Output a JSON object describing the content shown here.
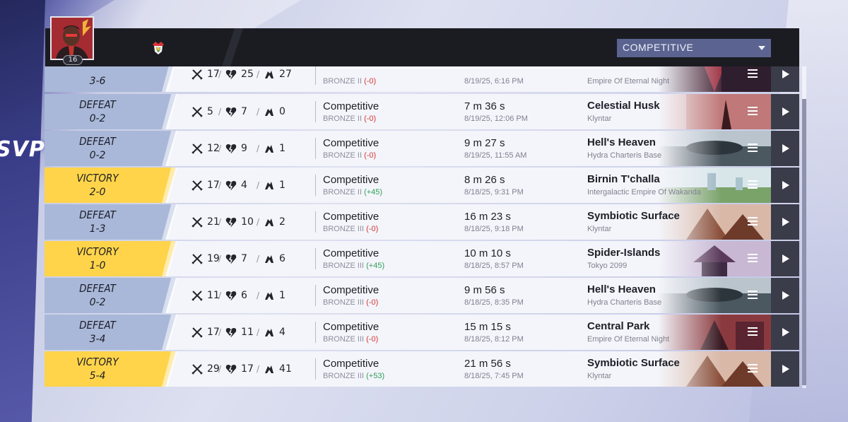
{
  "player": {
    "level": "16"
  },
  "header": {
    "mode_select": "COMPETITIVE"
  },
  "side_text": "SVP",
  "colors": {
    "victory": "#ffd44a",
    "defeat": "#a9b8d9",
    "delta_negative": "#d23838",
    "delta_positive": "#2fa05a"
  },
  "matches": [
    {
      "result": "",
      "score": "3-6",
      "kills": "17",
      "deaths": "25",
      "assists": "27",
      "mode": "Competitive",
      "rank": "BRONZE II",
      "delta": "(-0)",
      "duration": "",
      "datetime": "8/19/25, 6:16 PM",
      "map": "",
      "region": "Empire Of Eternal Night"
    },
    {
      "result": "DEFEAT",
      "score": "0-2",
      "kills": "5",
      "deaths": "7",
      "assists": "0",
      "mode": "Competitive",
      "rank": "BRONZE II",
      "delta": "(-0)",
      "duration": "7 m 36 s",
      "datetime": "8/19/25, 12:06 PM",
      "map": "Celestial Husk",
      "region": "Klyntar"
    },
    {
      "result": "DEFEAT",
      "score": "0-2",
      "kills": "12",
      "deaths": "9",
      "assists": "1",
      "mode": "Competitive",
      "rank": "BRONZE II",
      "delta": "(-0)",
      "duration": "9 m 27 s",
      "datetime": "8/19/25, 11:55 AM",
      "map": "Hell's Heaven",
      "region": "Hydra Charteris Base"
    },
    {
      "result": "VICTORY",
      "score": "2-0",
      "kills": "17",
      "deaths": "4",
      "assists": "1",
      "mode": "Competitive",
      "rank": "BRONZE II",
      "delta": "(+45)",
      "duration": "8 m 26 s",
      "datetime": "8/18/25, 9:31 PM",
      "map": "Birnin T'challa",
      "region": "Intergalactic Empire Of Wakanda"
    },
    {
      "result": "DEFEAT",
      "score": "1-3",
      "kills": "21",
      "deaths": "10",
      "assists": "2",
      "mode": "Competitive",
      "rank": "BRONZE III",
      "delta": "(-0)",
      "duration": "16 m 23 s",
      "datetime": "8/18/25, 9:18 PM",
      "map": "Symbiotic Surface",
      "region": "Klyntar"
    },
    {
      "result": "VICTORY",
      "score": "1-0",
      "kills": "19",
      "deaths": "7",
      "assists": "6",
      "mode": "Competitive",
      "rank": "BRONZE III",
      "delta": "(+45)",
      "duration": "10 m 10 s",
      "datetime": "8/18/25, 8:57 PM",
      "map": "Spider-Islands",
      "region": "Tokyo 2099"
    },
    {
      "result": "DEFEAT",
      "score": "0-2",
      "kills": "11",
      "deaths": "6",
      "assists": "1",
      "mode": "Competitive",
      "rank": "BRONZE III",
      "delta": "(-0)",
      "duration": "9 m 56 s",
      "datetime": "8/18/25, 8:35 PM",
      "map": "Hell's Heaven",
      "region": "Hydra Charteris Base"
    },
    {
      "result": "DEFEAT",
      "score": "3-4",
      "kills": "17",
      "deaths": "11",
      "assists": "4",
      "mode": "Competitive",
      "rank": "BRONZE III",
      "delta": "(-0)",
      "duration": "15 m 15 s",
      "datetime": "8/18/25, 8:12 PM",
      "map": "Central Park",
      "region": "Empire Of Eternal Night"
    },
    {
      "result": "VICTORY",
      "score": "5-4",
      "kills": "29",
      "deaths": "17",
      "assists": "41",
      "mode": "Competitive",
      "rank": "BRONZE III",
      "delta": "(+53)",
      "duration": "21 m 56 s",
      "datetime": "8/18/25, 7:45 PM",
      "map": "Symbiotic Surface",
      "region": "Klyntar"
    }
  ]
}
